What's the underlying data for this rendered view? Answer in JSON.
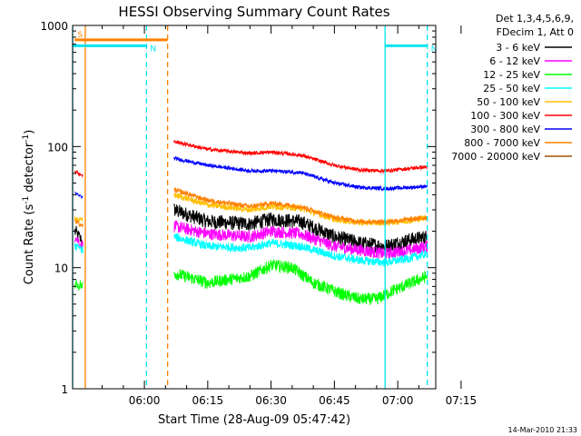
{
  "chart_data": {
    "type": "line",
    "title": "HESSI Observing Summary Count Rates",
    "xlabel": "Start Time (28-Aug-09 05:47:42)",
    "ylabel_main": "Count Rate (s",
    "ylabel_sup1": "-1",
    "ylabel_mid": " detector",
    "ylabel_sup2": "-1",
    "ylabel_end": ")",
    "y_scale": "log",
    "ylim": [
      1,
      1000
    ],
    "xlim_minutes": [
      -2,
      84
    ],
    "x_ticks": [
      {
        "label": "06:00",
        "min": 15
      },
      {
        "label": "06:15",
        "min": 30
      },
      {
        "label": "06:30",
        "min": 45
      },
      {
        "label": "06:45",
        "min": 60
      },
      {
        "label": "07:00",
        "min": 75
      },
      {
        "label": "07:15",
        "min": 90
      }
    ],
    "y_ticks": [
      {
        "label": "1",
        "value": 1
      },
      {
        "label": "10",
        "value": 10
      },
      {
        "label": "100",
        "value": 100
      },
      {
        "label": "1000",
        "value": 1000
      }
    ],
    "legend_header": [
      "Det 1,3,4,5,6,9,",
      "FDecim 1, Att 0"
    ],
    "legend_position": "right",
    "flag_labels": {
      "saa": "S",
      "night": "N"
    },
    "flags": [
      {
        "name": "S",
        "color": "#ff8000",
        "y_value": 760,
        "start_min": -1.5,
        "end_min": 20.5
      },
      {
        "name": "N",
        "color": "#00e5ee",
        "y_value": 680,
        "start_min": -2,
        "end_min": 15.5
      },
      {
        "name": "N",
        "color": "#00e5ee",
        "y_value": 680,
        "start_min": 72,
        "end_min": 82
      }
    ],
    "vertical_markers": [
      {
        "min": -2,
        "color": "#00e5ee",
        "style": "solid"
      },
      {
        "min": 1,
        "color": "#ff8000",
        "style": "solid"
      },
      {
        "min": 15.5,
        "color": "#00e5ee",
        "style": "dashed"
      },
      {
        "min": 20.5,
        "color": "#ff8000",
        "style": "dashed"
      },
      {
        "min": 72,
        "color": "#00e5ee",
        "style": "solid"
      },
      {
        "min": 82,
        "color": "#00e5ee",
        "style": "dashed"
      }
    ],
    "series": [
      {
        "name": "3 - 6 keV",
        "color": "#000000",
        "noise": 0.06,
        "start_points": [
          [
            -1.5,
            20
          ],
          [
            0.5,
            16
          ]
        ],
        "points": [
          [
            22,
            30
          ],
          [
            30,
            24
          ],
          [
            40,
            23
          ],
          [
            45,
            25
          ],
          [
            52,
            24
          ],
          [
            60,
            18
          ],
          [
            66,
            16
          ],
          [
            72,
            15
          ],
          [
            78,
            17
          ],
          [
            82,
            18
          ]
        ]
      },
      {
        "name": "6 - 12 keV",
        "color": "#ff00ff",
        "noise": 0.05,
        "start_points": [
          [
            -1.5,
            18
          ],
          [
            0.5,
            15
          ]
        ],
        "points": [
          [
            22,
            22
          ],
          [
            30,
            19
          ],
          [
            40,
            18
          ],
          [
            45,
            20
          ],
          [
            52,
            19
          ],
          [
            60,
            15
          ],
          [
            66,
            14
          ],
          [
            72,
            13
          ],
          [
            78,
            14
          ],
          [
            82,
            15
          ]
        ]
      },
      {
        "name": "12 - 25 keV",
        "color": "#00ff00",
        "noise": 0.05,
        "start_points": [
          [
            -1.5,
            7.5
          ],
          [
            0.5,
            7
          ]
        ],
        "points": [
          [
            22,
            9
          ],
          [
            30,
            7.5
          ],
          [
            40,
            8.5
          ],
          [
            45,
            10.5
          ],
          [
            50,
            10
          ],
          [
            55,
            7.5
          ],
          [
            62,
            6
          ],
          [
            66,
            5.5
          ],
          [
            70,
            5.5
          ],
          [
            74,
            6.5
          ],
          [
            82,
            8.5
          ]
        ]
      },
      {
        "name": "25 - 50 keV",
        "color": "#00ffff",
        "noise": 0.035,
        "start_points": [
          [
            -1.5,
            15
          ],
          [
            0.5,
            14
          ]
        ],
        "points": [
          [
            22,
            18
          ],
          [
            30,
            15
          ],
          [
            40,
            14.5
          ],
          [
            45,
            16
          ],
          [
            52,
            15
          ],
          [
            60,
            12.5
          ],
          [
            66,
            11.5
          ],
          [
            72,
            11
          ],
          [
            78,
            12
          ],
          [
            82,
            13
          ]
        ]
      },
      {
        "name": "50 - 100 keV",
        "color": "#ffbf00",
        "noise": 0.025,
        "start_points": [
          [
            -1.5,
            26
          ],
          [
            0.5,
            24
          ]
        ],
        "points": [
          [
            22,
            40
          ],
          [
            30,
            33
          ],
          [
            40,
            30
          ],
          [
            45,
            32
          ],
          [
            52,
            31
          ],
          [
            60,
            25
          ],
          [
            66,
            23.5
          ],
          [
            72,
            23.5
          ],
          [
            78,
            24.5
          ],
          [
            82,
            26
          ]
        ]
      },
      {
        "name": "100 - 300 keV",
        "color": "#ff0000",
        "noise": 0.015,
        "start_points": [
          [
            -1.5,
            62
          ],
          [
            0.5,
            58
          ]
        ],
        "points": [
          [
            22,
            110
          ],
          [
            30,
            95
          ],
          [
            40,
            88
          ],
          [
            45,
            90
          ],
          [
            52,
            85
          ],
          [
            60,
            70
          ],
          [
            66,
            64
          ],
          [
            72,
            63
          ],
          [
            78,
            66
          ],
          [
            82,
            68
          ]
        ]
      },
      {
        "name": "300 - 800 keV",
        "color": "#0000ff",
        "noise": 0.015,
        "start_points": [
          [
            -1.5,
            41
          ],
          [
            0.5,
            38
          ]
        ],
        "points": [
          [
            22,
            80
          ],
          [
            30,
            70
          ],
          [
            40,
            63
          ],
          [
            45,
            63
          ],
          [
            52,
            61
          ],
          [
            60,
            50
          ],
          [
            66,
            46
          ],
          [
            72,
            45
          ],
          [
            78,
            46
          ],
          [
            82,
            47
          ]
        ]
      },
      {
        "name": "800 - 7000 keV",
        "color": "#ff8000",
        "noise": 0.02,
        "start_points": [
          [
            -1.5,
            24
          ],
          [
            0.5,
            22
          ]
        ],
        "points": [
          [
            22,
            44
          ],
          [
            30,
            36
          ],
          [
            40,
            32
          ],
          [
            45,
            34
          ],
          [
            52,
            32
          ],
          [
            60,
            26
          ],
          [
            66,
            24
          ],
          [
            72,
            24
          ],
          [
            78,
            25
          ],
          [
            82,
            26
          ]
        ]
      },
      {
        "name": "7000 - 20000 keV",
        "color": "#a05000",
        "noise": 0.0,
        "start_points": [],
        "points": []
      }
    ]
  },
  "footer_date": "14-Mar-2010 21:33"
}
